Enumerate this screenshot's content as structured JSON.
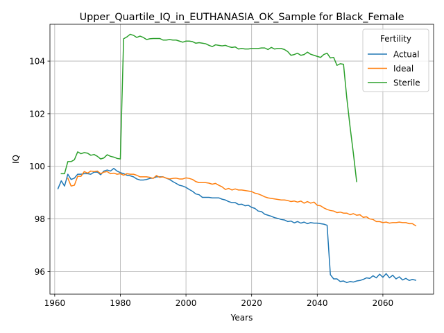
{
  "chart_data": {
    "type": "line",
    "title": "Upper_Quartile_IQ_in_EUTHANASIA_OK_Sample for Black_Female",
    "xlabel": "Years",
    "ylabel": "IQ",
    "xlim": [
      1958.55,
      2075.45
    ],
    "ylim": [
      95.14,
      105.4
    ],
    "xticks": [
      1960,
      1980,
      2000,
      2020,
      2040,
      2060
    ],
    "yticks": [
      96,
      98,
      100,
      102,
      104
    ],
    "grid": true,
    "legend": {
      "title": "Fertility",
      "placement": "top-right"
    },
    "series": [
      {
        "name": "Actual",
        "color": "#1f77b4",
        "x": [
          1961,
          1962,
          1963,
          1964,
          1965,
          1966,
          1967,
          1968,
          1969,
          1970,
          1971,
          1972,
          1973,
          1974,
          1975,
          1976,
          1977,
          1978,
          1979,
          1980,
          1981,
          1982,
          1983,
          1984,
          1985,
          1986,
          1987,
          1988,
          1989,
          1990,
          1991,
          1992,
          1993,
          1994,
          1995,
          1996,
          1997,
          1998,
          1999,
          2000,
          2001,
          2002,
          2003,
          2004,
          2005,
          2006,
          2007,
          2008,
          2009,
          2010,
          2011,
          2012,
          2013,
          2014,
          2015,
          2016,
          2017,
          2018,
          2019,
          2020,
          2021,
          2022,
          2023,
          2024,
          2025,
          2026,
          2027,
          2028,
          2029,
          2030,
          2031,
          2032,
          2033,
          2034,
          2035,
          2036,
          2037,
          2038,
          2039,
          2040,
          2041,
          2042,
          2043,
          2044,
          2045,
          2046,
          2047,
          2048,
          2049,
          2050,
          2051,
          2052,
          2053,
          2054,
          2055,
          2056,
          2057,
          2058,
          2059,
          2060,
          2061,
          2062,
          2063,
          2064,
          2065,
          2066,
          2067,
          2068,
          2069,
          2070
        ],
        "y": [
          99.15,
          99.45,
          99.25,
          99.7,
          99.5,
          99.55,
          99.7,
          99.7,
          99.72,
          99.72,
          99.7,
          99.78,
          99.78,
          99.68,
          99.82,
          99.86,
          99.82,
          99.92,
          99.82,
          99.76,
          99.72,
          99.66,
          99.64,
          99.6,
          99.52,
          99.48,
          99.48,
          99.5,
          99.54,
          99.55,
          99.6,
          99.6,
          99.6,
          99.55,
          99.5,
          99.42,
          99.35,
          99.28,
          99.25,
          99.2,
          99.12,
          99.05,
          98.95,
          98.92,
          98.82,
          98.82,
          98.82,
          98.8,
          98.8,
          98.8,
          98.75,
          98.72,
          98.66,
          98.62,
          98.62,
          98.55,
          98.56,
          98.5,
          98.52,
          98.44,
          98.4,
          98.3,
          98.28,
          98.18,
          98.14,
          98.1,
          98.05,
          98.02,
          97.98,
          97.96,
          97.9,
          97.92,
          97.85,
          97.9,
          97.84,
          97.88,
          97.82,
          97.86,
          97.84,
          97.84,
          97.82,
          97.8,
          97.76,
          95.88,
          95.72,
          95.72,
          95.62,
          95.64,
          95.58,
          95.62,
          95.6,
          95.64,
          95.66,
          95.7,
          95.76,
          95.74,
          95.84,
          95.76,
          95.9,
          95.78,
          95.92,
          95.76,
          95.86,
          95.72,
          95.8,
          95.68,
          95.74,
          95.66,
          95.7,
          95.67
        ]
      },
      {
        "name": "Ideal",
        "color": "#ff7f0e",
        "x": [
          1964,
          1965,
          1966,
          1967,
          1968,
          1969,
          1970,
          1971,
          1972,
          1973,
          1974,
          1975,
          1976,
          1977,
          1978,
          1979,
          1980,
          1981,
          1982,
          1983,
          1984,
          1985,
          1986,
          1987,
          1988,
          1989,
          1990,
          1991,
          1992,
          1993,
          1994,
          1995,
          1996,
          1997,
          1998,
          1999,
          2000,
          2001,
          2002,
          2003,
          2004,
          2005,
          2006,
          2007,
          2008,
          2009,
          2010,
          2011,
          2012,
          2013,
          2014,
          2015,
          2016,
          2017,
          2018,
          2019,
          2020,
          2021,
          2022,
          2023,
          2024,
          2025,
          2026,
          2027,
          2028,
          2029,
          2030,
          2031,
          2032,
          2033,
          2034,
          2035,
          2036,
          2037,
          2038,
          2039,
          2040,
          2041,
          2042,
          2043,
          2044,
          2045,
          2046,
          2047,
          2048,
          2049,
          2050,
          2051,
          2052,
          2053,
          2054,
          2055,
          2056,
          2057,
          2058,
          2059,
          2060,
          2061,
          2062,
          2063,
          2064,
          2065,
          2066,
          2067,
          2068,
          2069,
          2070
        ],
        "y": [
          99.55,
          99.25,
          99.28,
          99.62,
          99.62,
          99.8,
          99.74,
          99.82,
          99.8,
          99.82,
          99.72,
          99.78,
          99.8,
          99.72,
          99.74,
          99.7,
          99.72,
          99.66,
          99.72,
          99.7,
          99.7,
          99.66,
          99.6,
          99.6,
          99.6,
          99.58,
          99.54,
          99.65,
          99.58,
          99.6,
          99.55,
          99.52,
          99.54,
          99.55,
          99.52,
          99.52,
          99.56,
          99.54,
          99.5,
          99.42,
          99.38,
          99.38,
          99.38,
          99.36,
          99.32,
          99.35,
          99.28,
          99.22,
          99.12,
          99.16,
          99.1,
          99.14,
          99.1,
          99.1,
          99.08,
          99.06,
          99.04,
          98.98,
          98.95,
          98.9,
          98.84,
          98.8,
          98.78,
          98.76,
          98.74,
          98.72,
          98.72,
          98.7,
          98.66,
          98.68,
          98.64,
          98.68,
          98.6,
          98.66,
          98.6,
          98.64,
          98.52,
          98.5,
          98.42,
          98.36,
          98.32,
          98.3,
          98.24,
          98.26,
          98.22,
          98.22,
          98.16,
          98.2,
          98.14,
          98.16,
          98.06,
          98.08,
          98.0,
          97.98,
          97.9,
          97.9,
          97.86,
          97.88,
          97.84,
          97.86,
          97.86,
          97.88,
          97.86,
          97.86,
          97.82,
          97.82,
          97.74
        ]
      },
      {
        "name": "Sterile",
        "color": "#2ca02c",
        "x": [
          1962,
          1963,
          1964,
          1965,
          1966,
          1967,
          1968,
          1969,
          1970,
          1971,
          1972,
          1973,
          1974,
          1975,
          1976,
          1977,
          1978,
          1979,
          1980,
          1981,
          1982,
          1983,
          1984,
          1985,
          1986,
          1987,
          1988,
          1989,
          1990,
          1991,
          1992,
          1993,
          1994,
          1995,
          1996,
          1997,
          1998,
          1999,
          2000,
          2001,
          2002,
          2003,
          2004,
          2005,
          2006,
          2007,
          2008,
          2009,
          2010,
          2011,
          2012,
          2013,
          2014,
          2015,
          2016,
          2017,
          2018,
          2019,
          2020,
          2021,
          2022,
          2023,
          2024,
          2025,
          2026,
          2027,
          2028,
          2029,
          2030,
          2031,
          2032,
          2033,
          2034,
          2035,
          2036,
          2037,
          2038,
          2039,
          2040,
          2041,
          2042,
          2043,
          2044,
          2045,
          2046,
          2047,
          2048,
          2049,
          2050,
          2051,
          2052
        ],
        "y": [
          99.72,
          99.72,
          100.18,
          100.18,
          100.25,
          100.55,
          100.48,
          100.52,
          100.5,
          100.42,
          100.45,
          100.38,
          100.28,
          100.32,
          100.44,
          100.38,
          100.35,
          100.3,
          100.28,
          104.85,
          104.92,
          105.02,
          104.98,
          104.9,
          104.95,
          104.9,
          104.82,
          104.85,
          104.86,
          104.86,
          104.86,
          104.8,
          104.8,
          104.82,
          104.8,
          104.8,
          104.76,
          104.72,
          104.76,
          104.76,
          104.74,
          104.68,
          104.7,
          104.68,
          104.66,
          104.6,
          104.55,
          104.62,
          104.6,
          104.58,
          104.6,
          104.55,
          104.52,
          104.54,
          104.46,
          104.48,
          104.46,
          104.46,
          104.48,
          104.48,
          104.48,
          104.5,
          104.5,
          104.44,
          104.52,
          104.46,
          104.48,
          104.48,
          104.44,
          104.36,
          104.22,
          104.25,
          104.3,
          104.22,
          104.25,
          104.34,
          104.26,
          104.22,
          104.18,
          104.14,
          104.25,
          104.3,
          104.12,
          104.14,
          103.84,
          103.9,
          103.88,
          102.6,
          101.5,
          100.5,
          99.42
        ]
      }
    ]
  }
}
